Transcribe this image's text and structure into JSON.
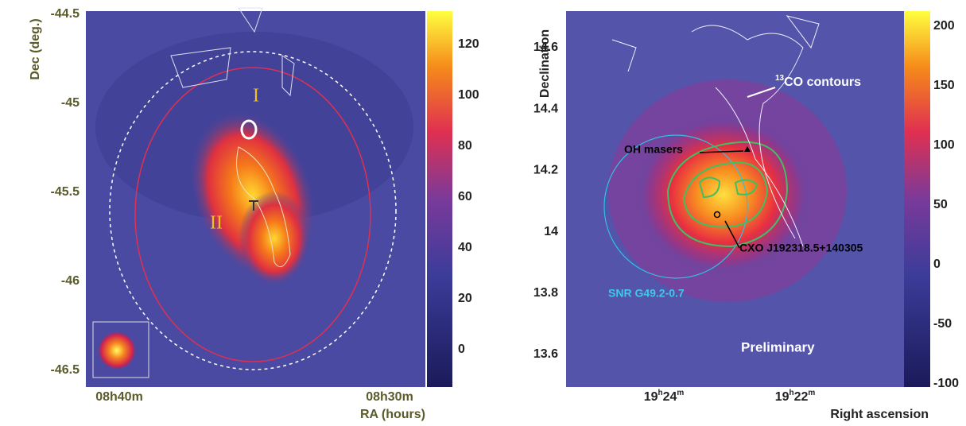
{
  "panels": [
    {
      "y_label": "Dec (deg.)",
      "x_label": "RA (hours)",
      "y_tick_labels": [
        "-44.5",
        "-45",
        "-45.5",
        "-46",
        "-46.5"
      ],
      "x_tick_labels": [
        "08h40m",
        "08h30m"
      ],
      "colorbar_tick_labels": [
        "120",
        "100",
        "80",
        "60",
        "40",
        "20",
        "0"
      ],
      "annotations": [
        "I",
        "II"
      ]
    },
    {
      "y_label": "Declination",
      "x_label": "Right ascension",
      "y_tick_labels": [
        "14.6",
        "14.4",
        "14.2",
        "14",
        "13.8",
        "13.6"
      ],
      "x_tick_labels": [
        [
          "19",
          "h",
          "24",
          "m"
        ],
        [
          "19",
          "h",
          "22",
          "m"
        ]
      ],
      "colorbar_tick_labels": [
        "200",
        "150",
        "100",
        "50",
        "0",
        "-50",
        "-100"
      ],
      "co_label": [
        "13",
        "CO contours"
      ],
      "annotations": [
        "OH masers",
        "CXO J192318.5+140305",
        "SNR G49.2-0.7",
        "Preliminary"
      ]
    }
  ]
}
